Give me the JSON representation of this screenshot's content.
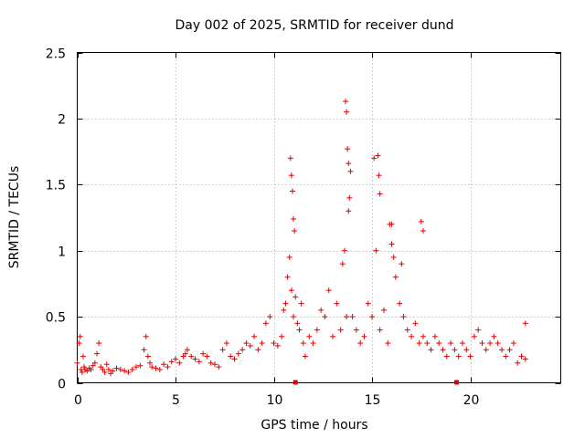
{
  "chart_data": {
    "type": "scatter",
    "title": "Day 002 of 2025, SRMTID for receiver dund",
    "xlabel": "GPS time / hours",
    "ylabel": "SRMTID / TECUs",
    "xlim": [
      0,
      24.6
    ],
    "ylim": [
      0,
      2.5
    ],
    "xticks": [
      0,
      5,
      10,
      15,
      20
    ],
    "yticks": [
      0,
      0.5,
      1,
      1.5,
      2,
      2.5
    ],
    "xtick_labels": [
      "0",
      "5",
      "10",
      "15",
      "20"
    ],
    "ytick_labels": [
      "0",
      "0.5",
      "1",
      "1.5",
      "2",
      "2.5"
    ],
    "grid": true,
    "marker": "plus",
    "color": "#e00000",
    "series": [
      {
        "name": "SRMTID",
        "x": [
          0.0,
          0.1,
          0.15,
          0.2,
          0.25,
          0.3,
          0.35,
          0.4,
          0.5,
          0.6,
          0.7,
          0.8,
          0.9,
          1.0,
          1.1,
          1.2,
          1.3,
          1.4,
          1.5,
          1.6,
          1.7,
          1.8,
          2.0,
          2.2,
          2.4,
          2.6,
          2.8,
          3.0,
          3.2,
          3.4,
          3.5,
          3.6,
          3.7,
          3.8,
          4.0,
          4.2,
          4.4,
          4.6,
          4.8,
          5.0,
          5.2,
          5.4,
          5.5,
          5.6,
          5.8,
          6.0,
          6.2,
          6.4,
          6.6,
          6.8,
          7.0,
          7.2,
          7.4,
          7.6,
          7.8,
          8.0,
          8.2,
          8.4,
          8.6,
          8.8,
          9.0,
          9.2,
          9.4,
          9.6,
          9.8,
          10.0,
          10.2,
          10.4,
          10.5,
          10.6,
          10.7,
          10.8,
          10.9,
          11.0,
          11.1,
          11.2,
          11.3,
          11.4,
          11.5,
          11.6,
          11.8,
          12.0,
          12.2,
          12.4,
          12.6,
          12.8,
          13.0,
          13.2,
          13.4,
          13.5,
          13.6,
          13.7,
          13.8,
          13.9,
          14.0,
          14.2,
          14.4,
          14.6,
          14.8,
          15.0,
          15.1,
          15.2,
          15.4,
          15.6,
          15.8,
          16.0,
          16.2,
          16.4,
          16.5,
          16.6,
          16.8,
          17.0,
          17.2,
          17.4,
          17.6,
          17.8,
          18.0,
          18.2,
          18.4,
          18.6,
          18.8,
          19.0,
          19.2,
          19.4,
          19.6,
          19.8,
          20.0,
          20.2,
          20.4,
          20.6,
          20.8,
          21.0,
          21.2,
          21.4,
          21.6,
          21.8,
          22.0,
          22.2,
          22.4,
          22.6,
          22.8,
          10.85,
          10.9,
          10.95,
          11.0,
          11.05,
          13.65,
          13.7,
          13.75,
          13.8,
          13.85,
          15.3,
          15.35,
          15.4,
          15.9,
          16.0,
          16.1,
          17.5,
          17.6,
          22.8
        ],
        "y": [
          0.15,
          0.3,
          0.35,
          0.1,
          0.08,
          0.2,
          0.12,
          0.1,
          0.09,
          0.11,
          0.1,
          0.13,
          0.15,
          0.22,
          0.3,
          0.12,
          0.1,
          0.08,
          0.14,
          0.1,
          0.07,
          0.09,
          0.11,
          0.1,
          0.09,
          0.08,
          0.1,
          0.12,
          0.13,
          0.25,
          0.35,
          0.2,
          0.15,
          0.12,
          0.11,
          0.1,
          0.14,
          0.12,
          0.16,
          0.18,
          0.15,
          0.2,
          0.22,
          0.25,
          0.2,
          0.18,
          0.16,
          0.22,
          0.2,
          0.15,
          0.14,
          0.12,
          0.25,
          0.3,
          0.2,
          0.18,
          0.22,
          0.25,
          0.3,
          0.28,
          0.35,
          0.25,
          0.3,
          0.45,
          0.5,
          0.3,
          0.28,
          0.35,
          0.55,
          0.6,
          0.8,
          0.95,
          0.7,
          0.5,
          0.65,
          0.45,
          0.4,
          0.6,
          0.3,
          0.2,
          0.35,
          0.3,
          0.4,
          0.55,
          0.5,
          0.7,
          0.35,
          0.6,
          0.4,
          0.9,
          1.0,
          0.5,
          1.3,
          1.6,
          0.5,
          0.4,
          0.3,
          0.35,
          0.6,
          0.5,
          1.7,
          1.0,
          0.4,
          0.55,
          0.3,
          1.2,
          0.8,
          0.6,
          0.9,
          0.5,
          0.4,
          0.35,
          0.45,
          0.3,
          0.35,
          0.3,
          0.25,
          0.35,
          0.3,
          0.25,
          0.2,
          0.3,
          0.25,
          0.2,
          0.3,
          0.25,
          0.2,
          0.35,
          0.4,
          0.3,
          0.25,
          0.3,
          0.35,
          0.3,
          0.25,
          0.2,
          0.25,
          0.3,
          0.15,
          0.2,
          0.18,
          1.7,
          1.57,
          1.45,
          1.24,
          1.15,
          2.13,
          2.05,
          1.77,
          1.66,
          1.4,
          1.72,
          1.57,
          1.43,
          1.2,
          1.05,
          0.95,
          1.22,
          1.15,
          0.45
        ]
      }
    ],
    "markers_on_axis": [
      11.1,
      19.3
    ]
  }
}
